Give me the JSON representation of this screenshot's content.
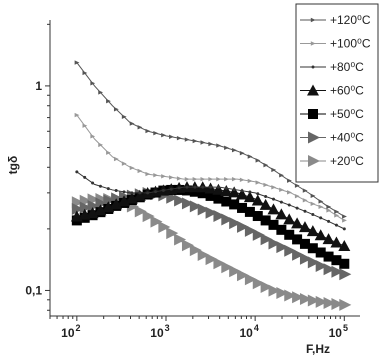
{
  "chart_data": {
    "type": "line",
    "xscale": "log",
    "yscale": "log",
    "xlim": [
      50,
      150000
    ],
    "ylim": [
      0.075,
      2.1
    ],
    "xlabel": "F,Hz",
    "ylabel": "tgδ",
    "xticks": [
      {
        "value": 100,
        "base": "10",
        "exp": "2"
      },
      {
        "value": 1000,
        "base": "10",
        "exp": "3"
      },
      {
        "value": 10000,
        "base": "10",
        "exp": "4"
      },
      {
        "value": 100000,
        "base": "10",
        "exp": "5"
      }
    ],
    "yticks": [
      {
        "value": 1,
        "label": "1"
      },
      {
        "value": 0.1,
        "label": "0,1"
      }
    ],
    "grid": false,
    "legend_position": "top-right",
    "x": [
      100,
      158,
      251,
      398,
      631,
      1000,
      1585,
      2512,
      3981,
      6310,
      10000,
      15849,
      25119,
      39811,
      63096,
      100000
    ],
    "series": [
      {
        "name": "+120⁰C",
        "marker": "small-triangle-right",
        "color": "#555555",
        "values": [
          1.3,
          1.0,
          0.8,
          0.66,
          0.6,
          0.57,
          0.55,
          0.53,
          0.51,
          0.48,
          0.44,
          0.39,
          0.34,
          0.3,
          0.26,
          0.23
        ]
      },
      {
        "name": "+100⁰C",
        "marker": "small-triangle-right",
        "color": "#999999",
        "values": [
          0.72,
          0.55,
          0.45,
          0.4,
          0.37,
          0.36,
          0.35,
          0.35,
          0.35,
          0.35,
          0.34,
          0.32,
          0.3,
          0.27,
          0.25,
          0.22
        ]
      },
      {
        "name": "+80⁰C",
        "marker": "dot",
        "color": "#333333",
        "values": [
          0.38,
          0.33,
          0.31,
          0.3,
          0.3,
          0.31,
          0.32,
          0.32,
          0.32,
          0.31,
          0.3,
          0.28,
          0.26,
          0.24,
          0.22,
          0.2
        ]
      },
      {
        "name": "+60⁰C",
        "marker": "triangle-up",
        "color": "#111111",
        "values": [
          0.23,
          0.24,
          0.26,
          0.28,
          0.3,
          0.31,
          0.32,
          0.32,
          0.31,
          0.3,
          0.28,
          0.25,
          0.22,
          0.2,
          0.18,
          0.165
        ]
      },
      {
        "name": "+50⁰C",
        "marker": "square",
        "color": "#000000",
        "values": [
          0.22,
          0.235,
          0.255,
          0.275,
          0.295,
          0.31,
          0.31,
          0.3,
          0.28,
          0.26,
          0.235,
          0.21,
          0.185,
          0.165,
          0.148,
          0.135
        ]
      },
      {
        "name": "+40⁰C",
        "marker": "triangle-right",
        "color": "#666666",
        "values": [
          0.25,
          0.26,
          0.28,
          0.29,
          0.3,
          0.29,
          0.27,
          0.25,
          0.23,
          0.21,
          0.19,
          0.17,
          0.155,
          0.14,
          0.128,
          0.12
        ]
      },
      {
        "name": "+20⁰C",
        "marker": "triangle-right",
        "color": "#8a8a8a",
        "values": [
          0.27,
          0.28,
          0.28,
          0.26,
          0.23,
          0.2,
          0.17,
          0.15,
          0.135,
          0.122,
          0.11,
          0.1,
          0.094,
          0.09,
          0.087,
          0.085
        ]
      }
    ]
  }
}
